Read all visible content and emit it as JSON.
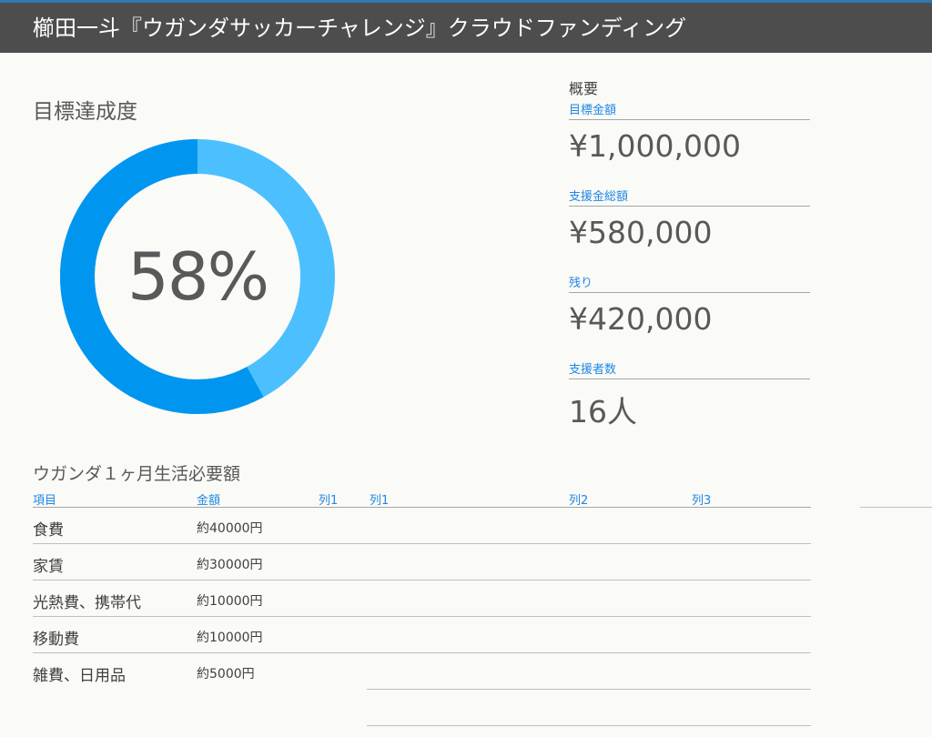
{
  "header": {
    "title": "櫛田一斗『ウガンダサッカーチャレンジ』クラウドファンディング"
  },
  "progress": {
    "title": "目標達成度",
    "percent_label": "58%",
    "fraction": 0.58,
    "colors": {
      "achieved": "#0096f0",
      "remaining": "#4cc0ff"
    }
  },
  "summary": {
    "heading": "概要",
    "items": [
      {
        "label": "目標金額",
        "value": "¥1,000,000"
      },
      {
        "label": "支援金総額",
        "value": "¥580,000"
      },
      {
        "label": "残り",
        "value": "¥420,000"
      },
      {
        "label": "支援者数",
        "value": "16人"
      }
    ]
  },
  "table": {
    "title": "ウガンダ１ヶ月生活必要額",
    "headers": [
      "項目",
      "金額",
      "列1",
      "列1",
      "列2",
      "列3"
    ],
    "rows": [
      {
        "item": "食費",
        "amount": "約40000円"
      },
      {
        "item": "家賃",
        "amount": "約30000円"
      },
      {
        "item": "光熱費、携帯代",
        "amount": "約10000円"
      },
      {
        "item": "移動費",
        "amount": "約10000円"
      },
      {
        "item": "雑費、日用品",
        "amount": "約5000円"
      }
    ]
  }
}
